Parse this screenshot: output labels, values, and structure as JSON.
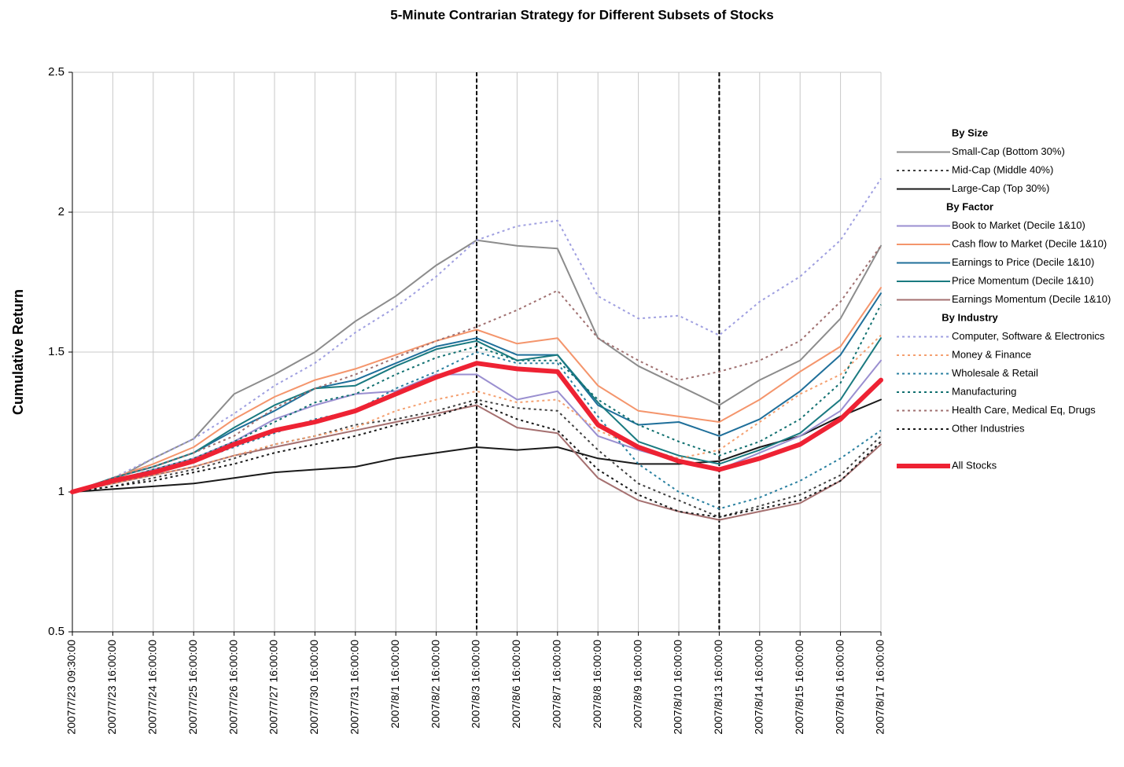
{
  "chart_data": {
    "type": "line",
    "title": "5-Minute Contrarian Strategy for Different Subsets of Stocks",
    "y_label": "Cumulative Return",
    "categories": [
      "2007/7/23 09:30:00",
      "2007/7/23 16:00:00",
      "2007/7/24 16:00:00",
      "2007/7/25 16:00:00",
      "2007/7/26 16:00:00",
      "2007/7/27 16:00:00",
      "2007/7/30 16:00:00",
      "2007/7/31 16:00:00",
      "2007/8/1 16:00:00",
      "2007/8/2 16:00:00",
      "2007/8/3 16:00:00",
      "2007/8/6 16:00:00",
      "2007/8/7 16:00:00",
      "2007/8/8 16:00:00",
      "2007/8/9 16:00:00",
      "2007/8/10 16:00:00",
      "2007/8/13 16:00:00",
      "2007/8/14 16:00:00",
      "2007/8/15 16:00:00",
      "2007/8/16 16:00:00",
      "2007/8/17 16:00:00"
    ],
    "ylim": [
      0.5,
      2.5
    ],
    "yticks": [
      2.5,
      2,
      1.5,
      1,
      0.5
    ],
    "grid": true,
    "vlines": [
      "2007/8/3 16:00:00",
      "2007/8/13 16:00:00"
    ],
    "legend": "right",
    "series": [
      {
        "group": "By Size",
        "name": "Small-Cap (Bottom 30%)",
        "color": "#8c8c8c",
        "dashed": false,
        "values": [
          1.0,
          1.04,
          1.12,
          1.19,
          1.35,
          1.42,
          1.5,
          1.61,
          1.7,
          1.81,
          1.9,
          1.88,
          1.87,
          1.55,
          1.45,
          1.38,
          1.31,
          1.4,
          1.47,
          1.62,
          1.88
        ]
      },
      {
        "group": "By Size",
        "name": "Mid-Cap (Middle 40%)",
        "color": "#404040",
        "dashed": true,
        "values": [
          1.0,
          1.02,
          1.05,
          1.08,
          1.12,
          1.17,
          1.2,
          1.24,
          1.26,
          1.29,
          1.33,
          1.3,
          1.29,
          1.15,
          1.03,
          0.97,
          0.91,
          0.95,
          0.99,
          1.06,
          1.2
        ]
      },
      {
        "group": "By Size",
        "name": "Large-Cap (Top 30%)",
        "color": "#1a1a1a",
        "dashed": false,
        "values": [
          1.0,
          1.01,
          1.02,
          1.03,
          1.05,
          1.07,
          1.08,
          1.09,
          1.12,
          1.14,
          1.16,
          1.15,
          1.16,
          1.12,
          1.1,
          1.1,
          1.11,
          1.16,
          1.2,
          1.27,
          1.33
        ]
      },
      {
        "group": "By Factor",
        "name": "Book to Market (Decile 1&10)",
        "color": "#9a8fd0",
        "dashed": false,
        "values": [
          1.0,
          1.04,
          1.08,
          1.12,
          1.18,
          1.26,
          1.31,
          1.35,
          1.36,
          1.42,
          1.42,
          1.33,
          1.36,
          1.2,
          1.15,
          1.11,
          1.08,
          1.14,
          1.2,
          1.29,
          1.47
        ]
      },
      {
        "group": "By Factor",
        "name": "Cash flow to Market (Decile 1&10)",
        "color": "#f4956c",
        "dashed": false,
        "values": [
          1.0,
          1.05,
          1.1,
          1.16,
          1.26,
          1.34,
          1.4,
          1.44,
          1.49,
          1.54,
          1.58,
          1.53,
          1.55,
          1.38,
          1.29,
          1.27,
          1.25,
          1.33,
          1.43,
          1.52,
          1.73
        ]
      },
      {
        "group": "By Factor",
        "name": "Earnings to Price (Decile 1&10)",
        "color": "#1f6f9a",
        "dashed": false,
        "values": [
          1.0,
          1.05,
          1.09,
          1.14,
          1.22,
          1.29,
          1.37,
          1.4,
          1.46,
          1.52,
          1.55,
          1.49,
          1.49,
          1.31,
          1.24,
          1.25,
          1.2,
          1.26,
          1.36,
          1.49,
          1.71
        ]
      },
      {
        "group": "By Factor",
        "name": "Price Momentum (Decile 1&10)",
        "color": "#1a7a80",
        "dashed": false,
        "values": [
          1.0,
          1.05,
          1.09,
          1.14,
          1.23,
          1.31,
          1.37,
          1.38,
          1.45,
          1.51,
          1.54,
          1.47,
          1.49,
          1.32,
          1.18,
          1.13,
          1.1,
          1.15,
          1.21,
          1.33,
          1.55
        ]
      },
      {
        "group": "By Factor",
        "name": " Earnings Momentum (Decile 1&10)",
        "color": "#a57070",
        "dashed": false,
        "values": [
          1.0,
          1.03,
          1.06,
          1.09,
          1.13,
          1.16,
          1.19,
          1.22,
          1.25,
          1.28,
          1.31,
          1.23,
          1.21,
          1.05,
          0.97,
          0.93,
          0.9,
          0.93,
          0.96,
          1.04,
          1.17
        ]
      },
      {
        "group": "By Industry",
        "name": "Computer, Software & Electronics",
        "color": "#9f9fe0",
        "dashed": true,
        "values": [
          1.0,
          1.05,
          1.12,
          1.19,
          1.28,
          1.38,
          1.46,
          1.57,
          1.66,
          1.77,
          1.9,
          1.95,
          1.97,
          1.7,
          1.62,
          1.63,
          1.56,
          1.68,
          1.77,
          1.9,
          2.12
        ]
      },
      {
        "group": "By Industry",
        "name": "Money & Finance",
        "color": "#f4a070",
        "dashed": true,
        "values": [
          1.0,
          1.03,
          1.06,
          1.09,
          1.13,
          1.17,
          1.2,
          1.23,
          1.29,
          1.33,
          1.36,
          1.32,
          1.33,
          1.22,
          1.16,
          1.12,
          1.15,
          1.25,
          1.35,
          1.42,
          1.56
        ]
      },
      {
        "group": "By Industry",
        "name": "Wholesale & Retail",
        "color": "#2a80a0",
        "dashed": true,
        "values": [
          1.0,
          1.04,
          1.07,
          1.11,
          1.16,
          1.21,
          1.26,
          1.29,
          1.37,
          1.43,
          1.5,
          1.46,
          1.46,
          1.27,
          1.1,
          1.0,
          0.94,
          0.98,
          1.04,
          1.12,
          1.22
        ]
      },
      {
        "group": "By Industry",
        "name": "Manufacturing",
        "color": "#117070",
        "dashed": true,
        "values": [
          1.0,
          1.04,
          1.08,
          1.12,
          1.18,
          1.25,
          1.32,
          1.35,
          1.42,
          1.48,
          1.52,
          1.47,
          1.47,
          1.33,
          1.24,
          1.18,
          1.13,
          1.18,
          1.26,
          1.39,
          1.67
        ]
      },
      {
        "group": "By Industry",
        "name": "Health Care, Medical Eq, Drugs",
        "color": "#a07070",
        "dashed": true,
        "values": [
          1.0,
          1.05,
          1.09,
          1.14,
          1.2,
          1.3,
          1.37,
          1.42,
          1.48,
          1.54,
          1.59,
          1.65,
          1.72,
          1.55,
          1.47,
          1.4,
          1.43,
          1.47,
          1.54,
          1.68,
          1.88
        ]
      },
      {
        "group": "By Industry",
        "name": "Other Industries",
        "color": "#1a1a1a",
        "dashed": true,
        "values": [
          1.0,
          1.02,
          1.04,
          1.07,
          1.1,
          1.14,
          1.17,
          1.2,
          1.24,
          1.27,
          1.32,
          1.26,
          1.22,
          1.08,
          0.99,
          0.93,
          0.91,
          0.94,
          0.97,
          1.04,
          1.18
        ]
      },
      {
        "name": "All Stocks",
        "color": "#ee2233",
        "dashed": false,
        "linewidth": 6,
        "values": [
          1.0,
          1.04,
          1.07,
          1.11,
          1.17,
          1.22,
          1.25,
          1.29,
          1.35,
          1.41,
          1.46,
          1.44,
          1.43,
          1.24,
          1.16,
          1.11,
          1.08,
          1.12,
          1.17,
          1.26,
          1.4
        ]
      }
    ]
  }
}
